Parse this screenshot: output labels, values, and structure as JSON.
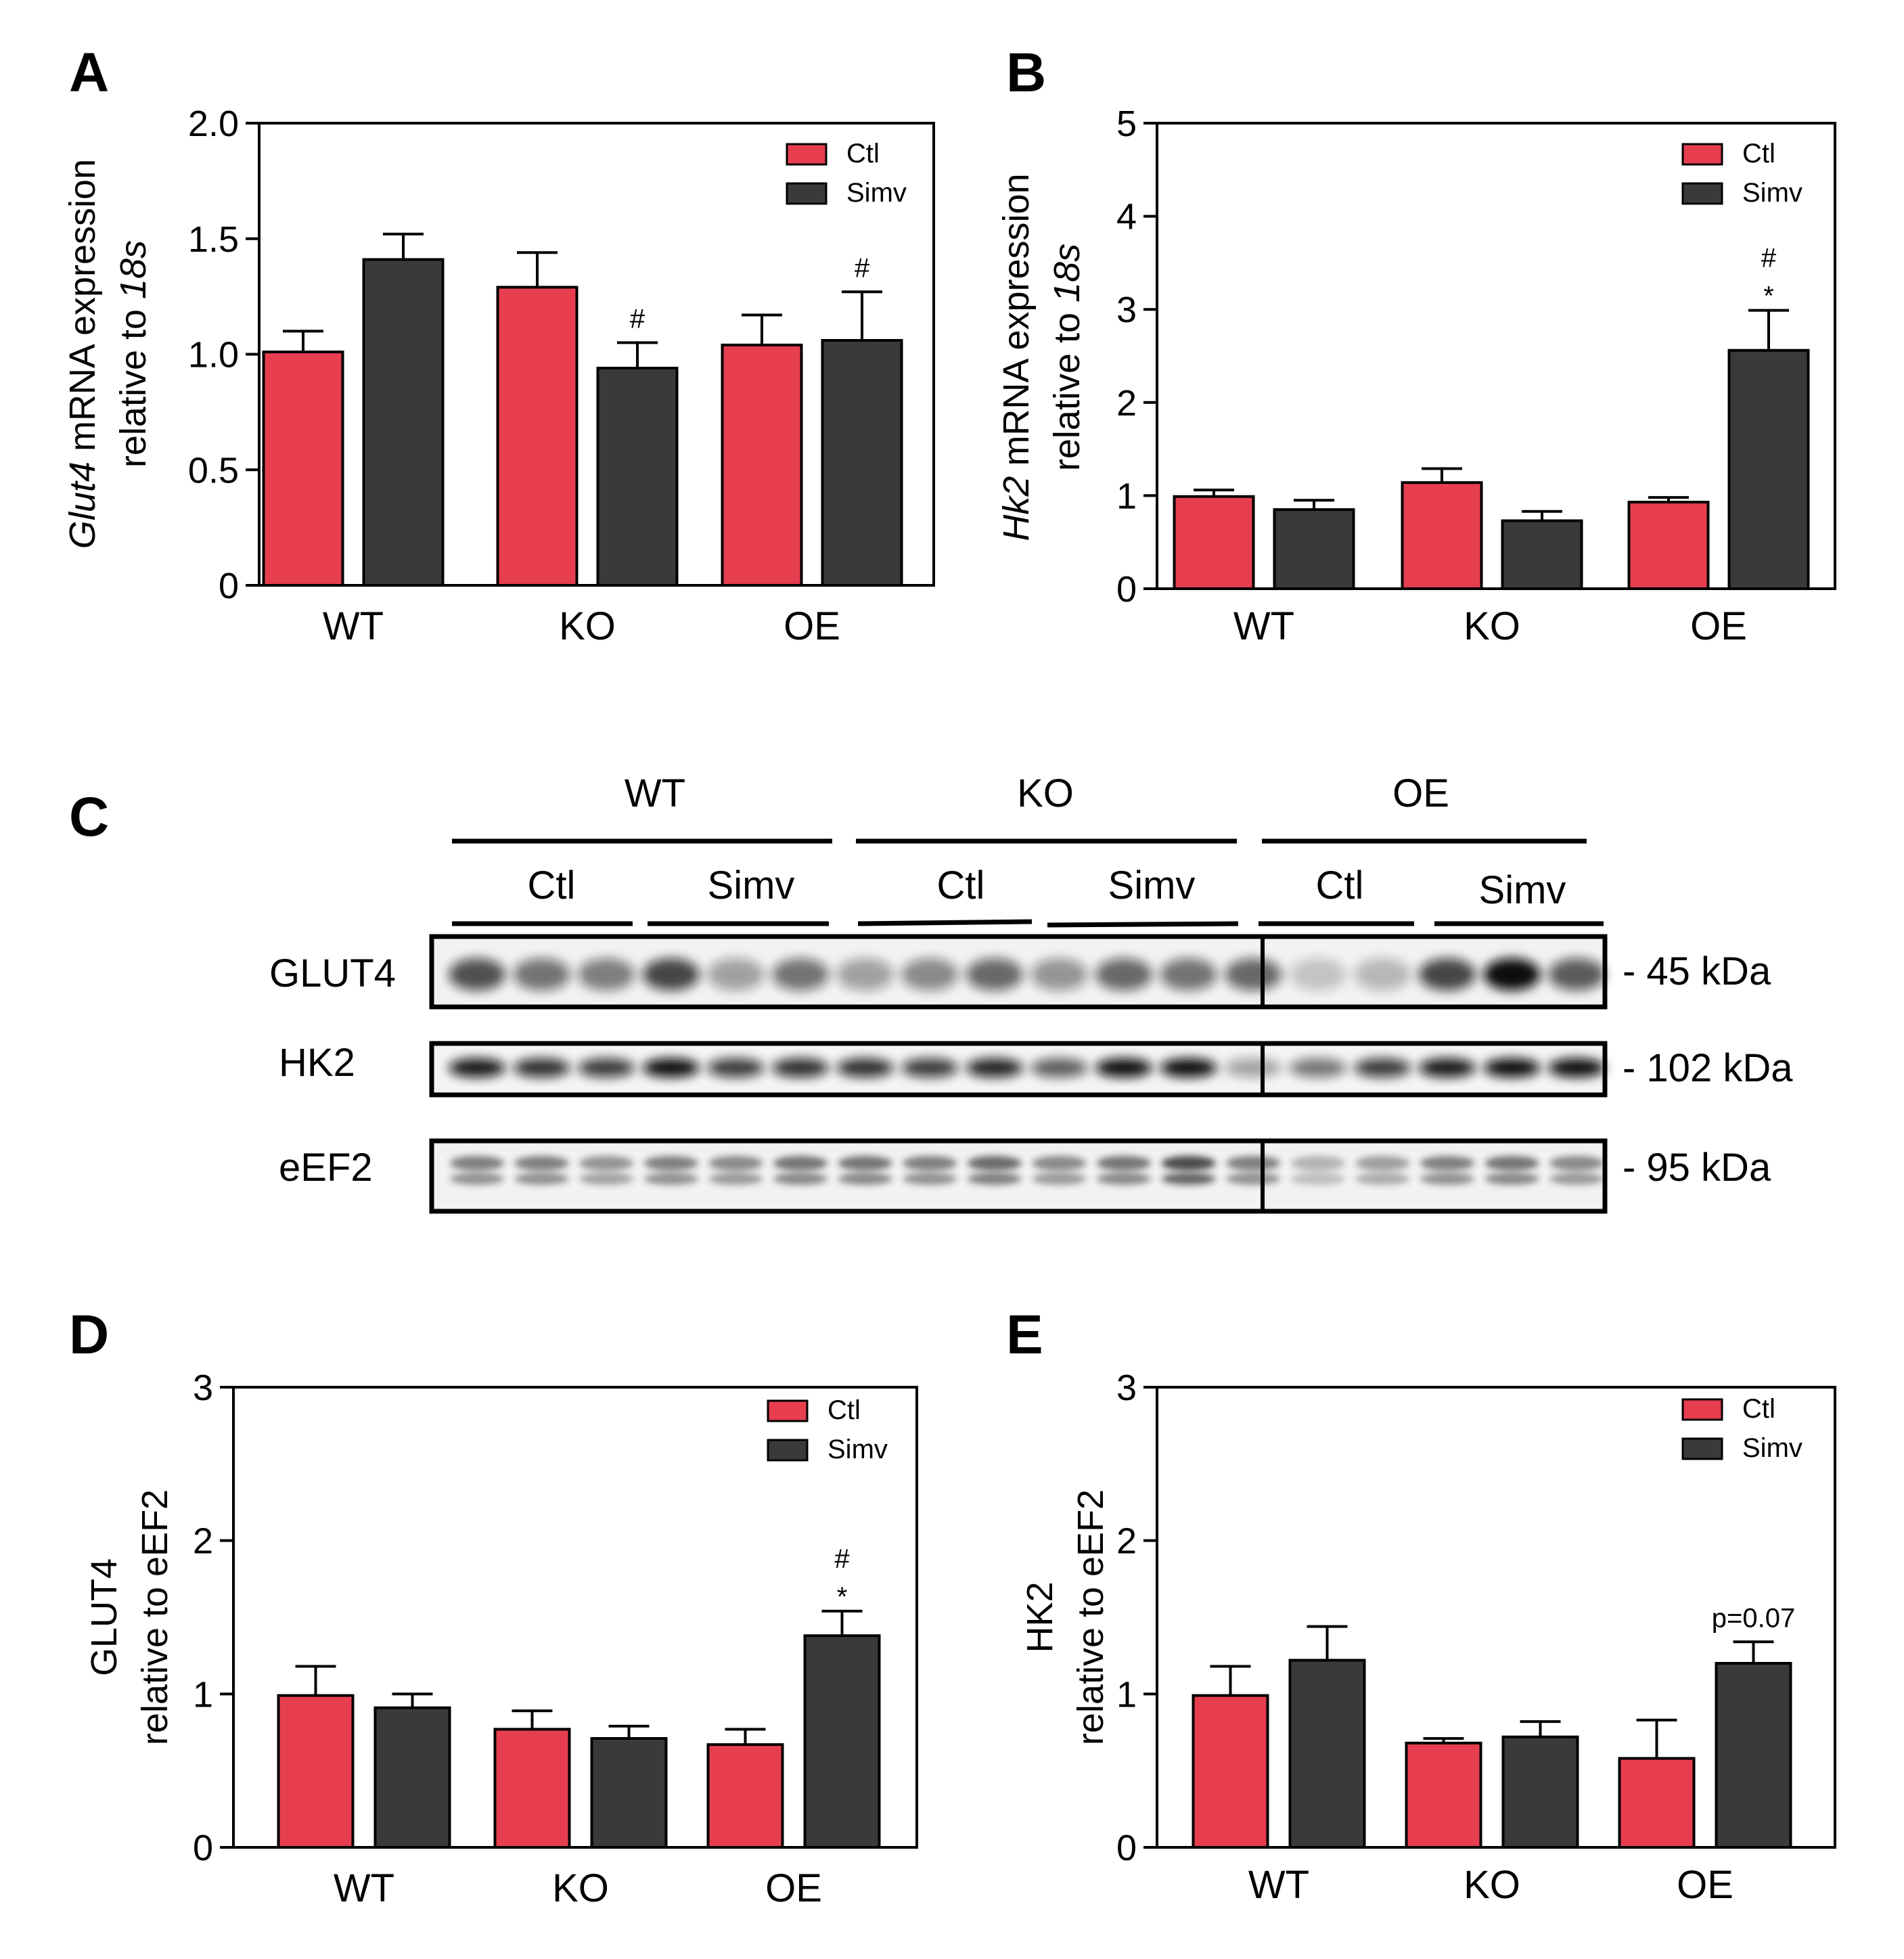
{
  "colors": {
    "ctl": "#e63e4f",
    "simv": "#3a3a3a",
    "axis": "#000000"
  },
  "legend": {
    "ctl": "Ctl",
    "simv": "Simv"
  },
  "chart_data": [
    {
      "panel": "A",
      "type": "bar",
      "categories": [
        "WT",
        "KO",
        "OE"
      ],
      "ylabel": {
        "gene": "Glut4",
        "line1_rest": " mRNA expression",
        "line2_prefix": "relative to ",
        "line2_italic": "18s"
      },
      "ylim": [
        0,
        2.0
      ],
      "yticks": [
        "0",
        "0.5",
        "1.0",
        "1.5",
        "2.0"
      ],
      "series": [
        {
          "name": "Ctl",
          "values": [
            1.01,
            1.29,
            1.04
          ],
          "errors": [
            0.09,
            0.15,
            0.13
          ]
        },
        {
          "name": "Simv",
          "values": [
            1.41,
            0.94,
            1.06
          ],
          "errors": [
            0.11,
            0.11,
            0.21
          ]
        }
      ],
      "annotations": [
        {
          "cat": 1,
          "series": 1,
          "lines": [
            "#"
          ]
        },
        {
          "cat": 2,
          "series": 1,
          "lines": [
            "#"
          ]
        }
      ]
    },
    {
      "panel": "B",
      "type": "bar",
      "categories": [
        "WT",
        "KO",
        "OE"
      ],
      "ylabel": {
        "gene": "Hk2",
        "line1_rest": " mRNA expression",
        "line2_prefix": "relative to ",
        "line2_italic": "18s"
      },
      "ylim": [
        0,
        5
      ],
      "yticks": [
        "0",
        "1",
        "2",
        "3",
        "4",
        "5"
      ],
      "series": [
        {
          "name": "Ctl",
          "values": [
            0.99,
            1.14,
            0.93
          ],
          "errors": [
            0.07,
            0.15,
            0.05
          ]
        },
        {
          "name": "Simv",
          "values": [
            0.85,
            0.73,
            2.56
          ],
          "errors": [
            0.1,
            0.1,
            0.43
          ]
        }
      ],
      "annotations": [
        {
          "cat": 2,
          "series": 1,
          "lines": [
            "#",
            "*"
          ]
        }
      ]
    },
    {
      "panel": "D",
      "type": "bar",
      "categories": [
        "WT",
        "KO",
        "OE"
      ],
      "ylabel": {
        "line1": "GLUT4",
        "line2": "relative to eEF2"
      },
      "ylim": [
        0,
        3
      ],
      "yticks": [
        "0",
        "1",
        "2",
        "3"
      ],
      "series": [
        {
          "name": "Ctl",
          "values": [
            0.99,
            0.77,
            0.67
          ],
          "errors": [
            0.19,
            0.12,
            0.1
          ]
        },
        {
          "name": "Simv",
          "values": [
            0.91,
            0.71,
            1.38
          ],
          "errors": [
            0.09,
            0.08,
            0.16
          ]
        }
      ],
      "annotations": [
        {
          "cat": 2,
          "series": 1,
          "lines": [
            "#",
            "*"
          ]
        }
      ]
    },
    {
      "panel": "E",
      "type": "bar",
      "categories": [
        "WT",
        "KO",
        "OE"
      ],
      "ylabel": {
        "line1": "HK2",
        "line2": "relative to eEF2"
      },
      "ylim": [
        0,
        3
      ],
      "yticks": [
        "0",
        "1",
        "2",
        "3"
      ],
      "series": [
        {
          "name": "Ctl",
          "values": [
            0.99,
            0.68,
            0.58
          ],
          "errors": [
            0.19,
            0.03,
            0.25
          ]
        },
        {
          "name": "Simv",
          "values": [
            1.22,
            0.72,
            1.2
          ],
          "errors": [
            0.22,
            0.1,
            0.14
          ]
        }
      ],
      "annotations": [
        {
          "cat": 2,
          "series": 1,
          "lines": [
            "p=0.07"
          ]
        }
      ]
    }
  ],
  "blot": {
    "panel": "C",
    "groups": [
      "WT",
      "KO",
      "OE"
    ],
    "treatments": [
      "Ctl",
      "Simv",
      "Ctl",
      "Simv",
      "Ctl",
      "Simv"
    ],
    "rows": [
      {
        "protein": "GLUT4",
        "mw": "- 45 kDa"
      },
      {
        "protein": "HK2",
        "mw": "- 102 kDa"
      },
      {
        "protein": "eEF2",
        "mw": "- 95 kDa"
      }
    ]
  }
}
